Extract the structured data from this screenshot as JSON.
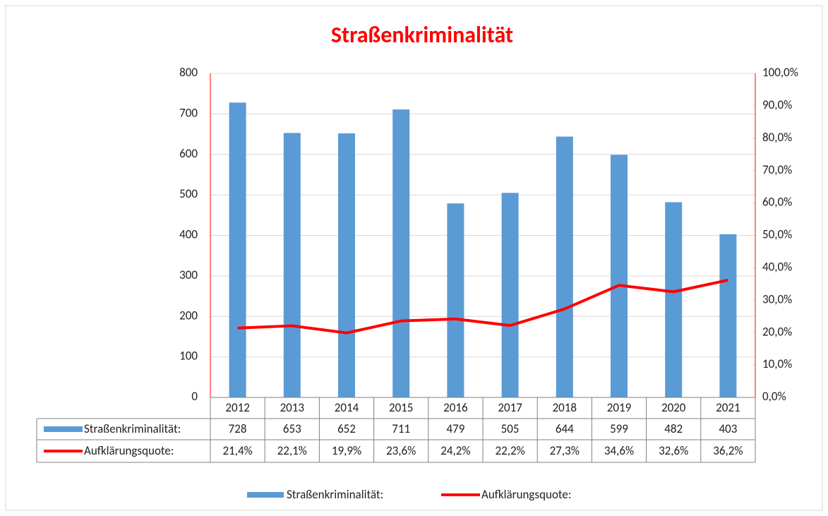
{
  "chart_data": {
    "type": "bar",
    "title": "Straßenkriminalität",
    "categories": [
      "2012",
      "2013",
      "2014",
      "2015",
      "2016",
      "2017",
      "2018",
      "2019",
      "2020",
      "2021"
    ],
    "series": [
      {
        "name": "Straßenkriminalität:",
        "type": "bar",
        "color": "#5b9bd5",
        "values": [
          728,
          653,
          652,
          711,
          479,
          505,
          644,
          599,
          482,
          403
        ]
      },
      {
        "name": "Aufklärungsquote:",
        "type": "line",
        "axis": "y2",
        "color": "#ff0000",
        "values": [
          21.4,
          22.1,
          19.9,
          23.6,
          24.2,
          22.2,
          27.3,
          34.6,
          32.6,
          36.2
        ],
        "value_labels": [
          "21,4%",
          "22,1%",
          "19,9%",
          "23,6%",
          "24,2%",
          "22,2%",
          "27,3%",
          "34,6%",
          "32,6%",
          "36,2%"
        ]
      }
    ],
    "ylim": [
      0,
      800
    ],
    "yticks": [
      0,
      100,
      200,
      300,
      400,
      500,
      600,
      700,
      800
    ],
    "y2lim": [
      0,
      100
    ],
    "y2ticks": [
      {
        "value": 0,
        "label": "0,0%"
      },
      {
        "value": 10,
        "label": "10,0%"
      },
      {
        "value": 20,
        "label": "20,0%"
      },
      {
        "value": 30,
        "label": "30,0%"
      },
      {
        "value": 40,
        "label": "40,0%"
      },
      {
        "value": 50,
        "label": "50,0%"
      },
      {
        "value": 60,
        "label": "60,0%"
      },
      {
        "value": 70,
        "label": "70,0%"
      },
      {
        "value": 80,
        "label": "80,0%"
      },
      {
        "value": 90,
        "label": "90,0%"
      },
      {
        "value": 100,
        "label": "100,0%"
      }
    ],
    "grid": true,
    "legend": "bottom"
  }
}
